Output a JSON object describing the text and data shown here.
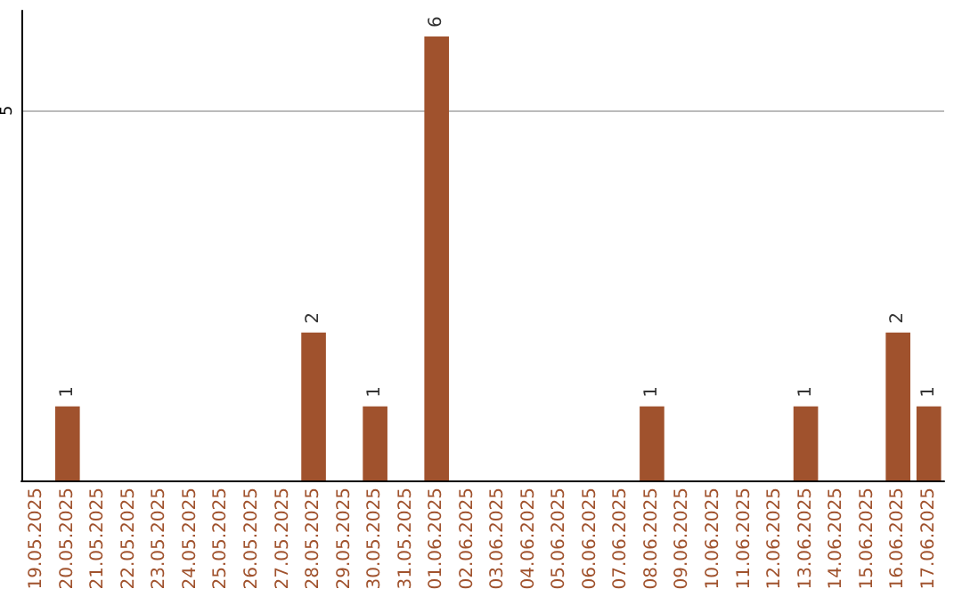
{
  "chart_data": {
    "type": "bar",
    "categories": [
      "19.05.2025",
      "20.05.2025",
      "21.05.2025",
      "22.05.2025",
      "23.05.2025",
      "24.05.2025",
      "25.05.2025",
      "26.05.2025",
      "27.05.2025",
      "28.05.2025",
      "29.05.2025",
      "30.05.2025",
      "31.05.2025",
      "01.06.2025",
      "02.06.2025",
      "03.06.2025",
      "04.06.2025",
      "05.06.2025",
      "06.06.2025",
      "07.06.2025",
      "08.06.2025",
      "09.06.2025",
      "10.06.2025",
      "11.06.2025",
      "12.06.2025",
      "13.06.2025",
      "14.06.2025",
      "15.06.2025",
      "16.06.2025",
      "17.06.2025"
    ],
    "values": [
      0,
      1,
      0,
      0,
      0,
      0,
      0,
      0,
      0,
      2,
      0,
      1,
      0,
      6,
      0,
      0,
      0,
      0,
      0,
      0,
      1,
      0,
      0,
      0,
      0,
      1,
      0,
      0,
      2,
      1
    ],
    "value_labels": [
      null,
      "1",
      null,
      null,
      null,
      null,
      null,
      null,
      null,
      "2",
      null,
      "1",
      null,
      "6",
      null,
      null,
      null,
      null,
      null,
      null,
      "1",
      null,
      null,
      null,
      null,
      "1",
      null,
      null,
      "2",
      "1"
    ],
    "color": "#a0522d",
    "ylim": [
      0,
      6.35
    ],
    "yticks": [
      5
    ],
    "grid": "y"
  }
}
